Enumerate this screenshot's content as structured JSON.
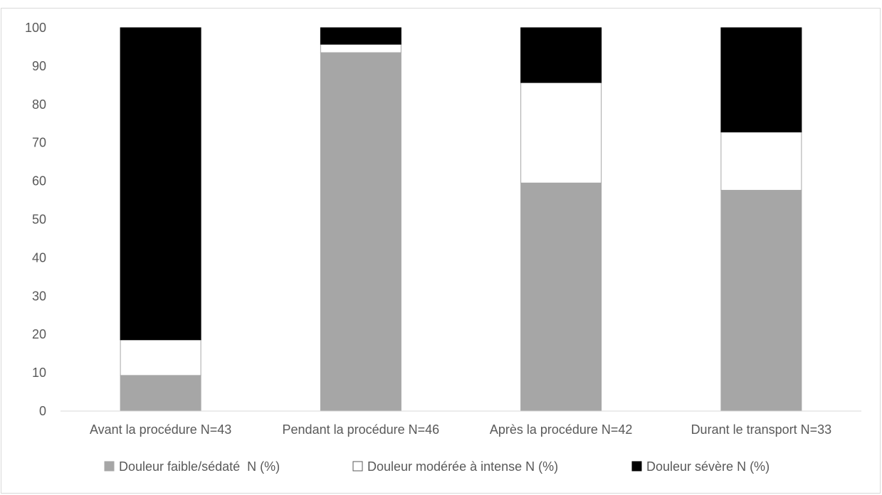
{
  "chart_data": {
    "type": "bar",
    "stacked": true,
    "title": "",
    "xlabel": "",
    "ylabel": "",
    "ylim": [
      0,
      100
    ],
    "yticks": [
      0,
      10,
      20,
      30,
      40,
      50,
      60,
      70,
      80,
      90,
      100
    ],
    "grid": false,
    "legend_position": "bottom",
    "categories": [
      "Avant la procédure N=43",
      "Pendant la procédure N=46",
      "Après la procédure N=42",
      "Durant le transport N=33"
    ],
    "series": [
      {
        "name": "Douleur faible/sédaté  N (%)",
        "color": "#a6a6a6",
        "values": [
          9.3,
          93.5,
          59.5,
          57.6
        ]
      },
      {
        "name": "Douleur modérée à intense N (%)",
        "color": "#ffffff",
        "values": [
          9.3,
          2.2,
          26.2,
          15.2
        ]
      },
      {
        "name": "Douleur sévère N (%)",
        "color": "#000000",
        "values": [
          81.4,
          4.3,
          14.3,
          27.2
        ]
      }
    ]
  }
}
